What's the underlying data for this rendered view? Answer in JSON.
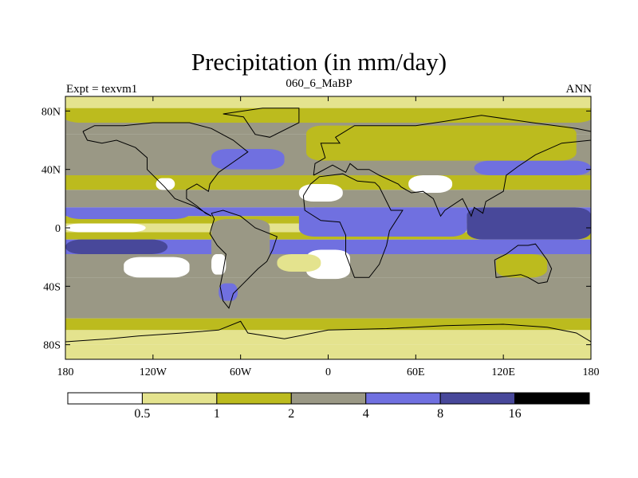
{
  "chart_data": {
    "type": "heatmap",
    "title": "Precipitation (in mm/day)",
    "subtitle": "060_6_MaBP",
    "left_label": "Expt = texvm1",
    "right_label": "ANN",
    "xlim": [
      -180,
      180
    ],
    "ylim": [
      -90,
      90
    ],
    "x_ticks": [
      {
        "value": -180,
        "label": "180"
      },
      {
        "value": -120,
        "label": "120W"
      },
      {
        "value": -60,
        "label": "60W"
      },
      {
        "value": 0,
        "label": "0"
      },
      {
        "value": 60,
        "label": "60E"
      },
      {
        "value": 120,
        "label": "120E"
      },
      {
        "value": 180,
        "label": "180"
      }
    ],
    "y_ticks": [
      {
        "value": 80,
        "label": "80N"
      },
      {
        "value": 40,
        "label": "40N"
      },
      {
        "value": 0,
        "label": "0"
      },
      {
        "value": -40,
        "label": "40S"
      },
      {
        "value": -80,
        "label": "80S"
      }
    ],
    "colorbar": {
      "levels": [
        "0.5",
        "1",
        "2",
        "4",
        "8",
        "16"
      ],
      "colors": [
        "#ffffff",
        "#e4e38e",
        "#bcbb1e",
        "#9a9885",
        "#7070e0",
        "#48489a",
        "#000000"
      ]
    },
    "bands": [
      {
        "lat_top": 90,
        "lat_bottom": 82,
        "level": 1
      },
      {
        "lat_top": 82,
        "lat_bottom": 74,
        "level": 2
      },
      {
        "lat_top": 74,
        "lat_bottom": 64,
        "level": 3
      },
      {
        "lat_top": 64,
        "lat_bottom": 48,
        "level": 3
      },
      {
        "lat_top": 48,
        "lat_bottom": 36,
        "level": 3
      },
      {
        "lat_top": 36,
        "lat_bottom": 26,
        "level": 2
      },
      {
        "lat_top": 26,
        "lat_bottom": 14,
        "level": 3
      },
      {
        "lat_top": 14,
        "lat_bottom": 8,
        "level": 4
      },
      {
        "lat_top": 8,
        "lat_bottom": 3,
        "level": 2
      },
      {
        "lat_top": 3,
        "lat_bottom": -3,
        "level": 1
      },
      {
        "lat_top": -3,
        "lat_bottom": -8,
        "level": 2
      },
      {
        "lat_top": -8,
        "lat_bottom": -18,
        "level": 4
      },
      {
        "lat_top": -18,
        "lat_bottom": -34,
        "level": 3
      },
      {
        "lat_top": -34,
        "lat_bottom": -48,
        "level": 3
      },
      {
        "lat_top": -48,
        "lat_bottom": -62,
        "level": 3
      },
      {
        "lat_top": -62,
        "lat_bottom": -70,
        "level": 2
      },
      {
        "lat_top": -70,
        "lat_bottom": -80,
        "level": 1
      },
      {
        "lat_top": -80,
        "lat_bottom": -90,
        "level": 1
      }
    ],
    "regions": [
      {
        "name": "n-hemisphere-wet-band",
        "lon_min": -180,
        "lon_max": 180,
        "lat_min": 72,
        "lat_max": 78,
        "level": 2
      },
      {
        "name": "west-pacific-warm-pool",
        "lon_min": 95,
        "lon_max": 180,
        "lat_min": -8,
        "lat_max": 14,
        "level": 5
      },
      {
        "name": "east-pacific-itcz",
        "lon_min": -180,
        "lon_max": -95,
        "lat_min": 6,
        "lat_max": 13,
        "level": 4
      },
      {
        "name": "south-pacific-convergence",
        "lon_min": -180,
        "lon_max": -110,
        "lat_min": -18,
        "lat_max": -8,
        "level": 5
      },
      {
        "name": "indian-ocean-wet",
        "lon_min": -20,
        "lon_max": 95,
        "lat_min": -6,
        "lat_max": 14,
        "level": 4
      },
      {
        "name": "north-atlantic-storm-track",
        "lon_min": -80,
        "lon_max": -30,
        "lat_min": 40,
        "lat_max": 54,
        "level": 4
      },
      {
        "name": "north-pacific-storm-track",
        "lon_min": 100,
        "lon_max": 180,
        "lat_min": 36,
        "lat_max": 46,
        "level": 4
      },
      {
        "name": "south-america-wet",
        "lon_min": -80,
        "lon_max": -40,
        "lat_min": -30,
        "lat_max": 6,
        "level": 3
      },
      {
        "name": "south-america-patch",
        "lon_min": -75,
        "lon_max": -62,
        "lat_min": -50,
        "lat_max": -38,
        "level": 4
      },
      {
        "name": "desert-north-africa",
        "lon_min": -20,
        "lon_max": 10,
        "lat_min": 18,
        "lat_max": 30,
        "level": 0
      },
      {
        "name": "desert-central-asia",
        "lon_min": 55,
        "lon_max": 85,
        "lat_min": 24,
        "lat_max": 36,
        "level": 0
      },
      {
        "name": "desert-north-america",
        "lon_min": -118,
        "lon_max": -105,
        "lat_min": 26,
        "lat_max": 34,
        "level": 0
      },
      {
        "name": "desert-southern-africa",
        "lon_min": -15,
        "lon_max": 15,
        "lat_min": -35,
        "lat_max": -15,
        "level": 0
      },
      {
        "name": "desert-south-america",
        "lon_min": -80,
        "lon_max": -70,
        "lat_min": -32,
        "lat_max": -18,
        "level": 0
      },
      {
        "name": "dry-east-pacific",
        "lon_min": -180,
        "lon_max": -125,
        "lat_min": -3,
        "lat_max": 3,
        "level": 0
      },
      {
        "name": "dry-south-pacific",
        "lon_min": -140,
        "lon_max": -95,
        "lat_min": -34,
        "lat_max": -20,
        "level": 0
      },
      {
        "name": "dry-south-atlantic",
        "lon_min": -35,
        "lon_max": -5,
        "lat_min": -30,
        "lat_max": -18,
        "level": 1
      },
      {
        "name": "australia-dry",
        "lon_min": 115,
        "lon_max": 150,
        "lat_min": -34,
        "lat_max": -18,
        "level": 2
      },
      {
        "name": "eurasia-moderate",
        "lon_min": -15,
        "lon_max": 170,
        "lat_min": 46,
        "lat_max": 70,
        "level": 2
      }
    ]
  }
}
